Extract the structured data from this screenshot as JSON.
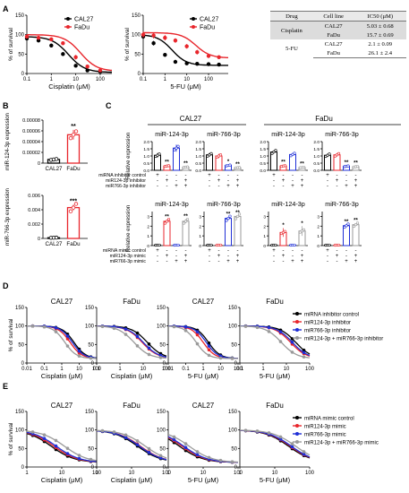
{
  "panels": {
    "A": "A",
    "B": "B",
    "C": "C",
    "D": "D",
    "E": "E"
  },
  "table": {
    "headers": [
      "Drug",
      "Cell line",
      "IC50 (μM)"
    ],
    "rows": [
      {
        "drug": "Cisplatin",
        "cell": "CAL27",
        "ic50": "5.03 ± 0.68"
      },
      {
        "drug": "",
        "cell": "FaDu",
        "ic50": "15.7 ± 0.69"
      },
      {
        "drug": "5-FU",
        "cell": "CAL27",
        "ic50": "2.1 ± 0.09"
      },
      {
        "drug": "",
        "cell": "FaDu",
        "ic50": "26.1 ± 2.4"
      }
    ]
  },
  "colors": {
    "cal27": "#000000",
    "fadu": "#e8262c",
    "blue": "#1f2fd6",
    "gray": "#9a9a9a",
    "red": "#e8262c"
  },
  "chart_data": [
    {
      "id": "A1",
      "type": "line",
      "title": "",
      "xlabel": "Cisplatin (μM)",
      "ylabel": "% of survival",
      "xscale": "log",
      "xlim": [
        0.1,
        300
      ],
      "ylim": [
        0,
        150
      ],
      "xticks": [
        "0.1",
        "1",
        "10",
        "100"
      ],
      "yticks": [
        "0",
        "50",
        "100",
        "150"
      ],
      "legend": [
        "CAL27",
        "FaDu"
      ],
      "series": [
        {
          "name": "CAL27",
          "color": "#000000",
          "x": [
            0.1,
            0.3,
            1,
            3,
            10,
            30,
            100
          ],
          "y": [
            90,
            85,
            72,
            50,
            20,
            8,
            5
          ],
          "err": [
            4,
            4,
            5,
            5,
            4,
            3,
            2
          ],
          "ec50": 5.03
        },
        {
          "name": "FaDu",
          "color": "#e8262c",
          "x": [
            0.1,
            0.3,
            1,
            3,
            10,
            30,
            100
          ],
          "y": [
            95,
            92,
            88,
            78,
            42,
            18,
            8
          ],
          "err": [
            4,
            4,
            5,
            5,
            6,
            4,
            3
          ],
          "ec50": 15.7
        }
      ]
    },
    {
      "id": "A2",
      "type": "line",
      "title": "",
      "xlabel": "5-FU (μM)",
      "ylabel": "% of survival",
      "xscale": "log",
      "xlim": [
        0.1,
        800
      ],
      "ylim": [
        0,
        150
      ],
      "xticks": [
        "0.1",
        "1",
        "10",
        "100"
      ],
      "yticks": [
        "0",
        "50",
        "100",
        "150"
      ],
      "legend": [
        "CAL27",
        "FaDu"
      ],
      "series": [
        {
          "name": "CAL27",
          "color": "#000000",
          "x": [
            0.1,
            0.3,
            1,
            3,
            10,
            30,
            100,
            300
          ],
          "y": [
            95,
            78,
            48,
            30,
            26,
            25,
            24,
            23
          ],
          "err": [
            6,
            6,
            5,
            4,
            4,
            4,
            4,
            4
          ],
          "ec50": 2.1
        },
        {
          "name": "FaDu",
          "color": "#e8262c",
          "x": [
            0.1,
            0.3,
            1,
            3,
            10,
            30,
            100,
            300
          ],
          "y": [
            100,
            98,
            92,
            85,
            70,
            55,
            45,
            42
          ],
          "err": [
            8,
            8,
            7,
            6,
            6,
            6,
            5,
            5
          ],
          "ec50": 26.1
        }
      ]
    },
    {
      "id": "B1",
      "type": "bar",
      "ylabel": "miR-124-3p expression",
      "categories": [
        "CAL27",
        "FaDu"
      ],
      "values": [
        6.8e-06,
        5.28e-05
      ],
      "err": [
        1e-06,
        9e-06
      ],
      "ylim": [
        0,
        8e-05
      ],
      "yticks": [
        "0",
        "0.00002",
        "0.00004",
        "0.00006",
        "0.00008"
      ],
      "sig": [
        "",
        "**"
      ],
      "colors": [
        "#000000",
        "#e8262c"
      ]
    },
    {
      "id": "B2",
      "type": "bar",
      "ylabel": "miR-766-3p expression",
      "categories": [
        "CAL27",
        "FaDu"
      ],
      "values": [
        0.0001,
        0.0043
      ],
      "err": [
        5e-05,
        0.0004
      ],
      "ylim": [
        0,
        0.006
      ],
      "yticks": [
        "0",
        "0.002",
        "0.004",
        "0.006"
      ],
      "sig": [
        "",
        "***"
      ],
      "colors": [
        "#000000",
        "#e8262c"
      ]
    },
    {
      "id": "C",
      "type": "bar",
      "groups_top": [
        "CAL27",
        "FaDu"
      ],
      "rows": [
        {
          "ylabel": "Relative expression",
          "yticks": [
            "0.0",
            "0.5",
            "1.0",
            "1.5",
            "2.0"
          ],
          "ylim": [
            0,
            2
          ],
          "label_rows": [
            "miRNA inhibitor control",
            "miR124-3p inhibitor",
            "miR766-3p inhibitor"
          ],
          "pattern": [
            [
              "+",
              "-",
              "-",
              "-"
            ],
            [
              "-",
              "+",
              "-",
              "+"
            ],
            [
              "-",
              "-",
              "+",
              "+"
            ]
          ],
          "subpanels": [
            {
              "title": "miR-124-3p",
              "values": [
                1.05,
                0.3,
                1.55,
                0.22
              ],
              "err": [
                0.15,
                0.08,
                0.25,
                0.06
              ],
              "sig": [
                "",
                "**",
                "",
                "**"
              ]
            },
            {
              "title": "miR-766-3p",
              "values": [
                1.08,
                1.0,
                0.34,
                0.18
              ],
              "err": [
                0.12,
                0.15,
                0.06,
                0.05
              ],
              "sig": [
                "",
                "",
                "*",
                "**"
              ]
            },
            {
              "title": "miR-124-3p",
              "values": [
                1.28,
                0.3,
                1.1,
                0.2
              ],
              "err": [
                0.08,
                0.06,
                0.1,
                0.05
              ],
              "sig": [
                "",
                "**",
                "",
                "**"
              ]
            },
            {
              "title": "miR-766-3p",
              "values": [
                1.05,
                1.08,
                0.28,
                0.25
              ],
              "err": [
                0.1,
                0.12,
                0.06,
                0.05
              ],
              "sig": [
                "",
                "",
                "**",
                "**"
              ]
            }
          ]
        },
        {
          "ylabel": "Relative expression",
          "yticks": [
            "0",
            "1",
            "2",
            "3"
          ],
          "ylim": [
            0,
            3.5
          ],
          "label_rows": [
            "miRNA mimic control",
            "miR124-3p mimic",
            "miR766-3p mimic"
          ],
          "pattern": [
            [
              "+",
              "-",
              "-",
              "-"
            ],
            [
              "-",
              "+",
              "-",
              "+"
            ],
            [
              "-",
              "-",
              "+",
              "+"
            ]
          ],
          "subpanels": [
            {
              "title": "miR-124-3p",
              "values": [
                0.05,
                2.5,
                0.05,
                2.5
              ],
              "err": [
                0.02,
                0.15,
                0.02,
                0.2
              ],
              "sig": [
                "",
                "**",
                "",
                "**"
              ]
            },
            {
              "title": "miR-766-3p",
              "values": [
                0.05,
                0.05,
                2.8,
                3.0
              ],
              "err": [
                0.02,
                0.02,
                0.15,
                0.1
              ],
              "sig": [
                "",
                "",
                "**",
                "**"
              ]
            },
            {
              "title": "miR-124-3p",
              "values": [
                0.05,
                1.35,
                0.05,
                1.5
              ],
              "err": [
                0.02,
                0.45,
                0.02,
                0.5
              ],
              "sig": [
                "",
                "*",
                "",
                "*"
              ]
            },
            {
              "title": "miR-766-3p",
              "values": [
                0.05,
                0.05,
                2.05,
                2.15
              ],
              "err": [
                0.02,
                0.02,
                0.12,
                0.15
              ],
              "sig": [
                "",
                "",
                "**",
                "**"
              ]
            }
          ]
        }
      ]
    },
    {
      "id": "D",
      "type": "line",
      "ylabel": "% of survival",
      "legend": [
        "miRNA inhibitor control",
        "miR124-3p inhibitor",
        "miR766-3p inhibitor",
        "miR124-3p + miR766-3p inhibitor"
      ],
      "legend_colors": [
        "#000000",
        "#e8262c",
        "#1f2fd6",
        "#9a9a9a"
      ],
      "subplots": [
        {
          "title": "CAL27",
          "xlabel": "Cisplatin (μM)",
          "xticks": [
            "0.01",
            "0.1",
            "1",
            "10",
            "100"
          ],
          "xlim": [
            0.01,
            100
          ],
          "ylim": [
            0,
            150
          ],
          "yticks": [
            "0",
            "50",
            "100",
            "150"
          ],
          "ec50": [
            5,
            3,
            4,
            1.5
          ]
        },
        {
          "title": "FaDu",
          "xlabel": "Cisplatin (μM)",
          "xticks": [
            "0.1",
            "1",
            "10",
            "100"
          ],
          "xlim": [
            0.1,
            100
          ],
          "ylim": [
            0,
            150
          ],
          "yticks": [
            "0",
            "50",
            "100",
            "150"
          ],
          "ec50": [
            15,
            9,
            10,
            4
          ]
        },
        {
          "title": "CAL27",
          "xlabel": "5-FU (μM)",
          "xticks": [
            "0.01",
            "0.1",
            "1",
            "10",
            "100"
          ],
          "xlim": [
            0.01,
            100
          ],
          "ylim": [
            0,
            150
          ],
          "yticks": [
            "0",
            "50",
            "100",
            "150"
          ],
          "ec50": [
            2,
            1,
            1.5,
            0.4
          ]
        },
        {
          "title": "FaDu",
          "xlabel": "5-FU (μM)",
          "xticks": [
            "0.1",
            "1",
            "10",
            "100"
          ],
          "xlim": [
            0.1,
            100
          ],
          "ylim": [
            0,
            150
          ],
          "yticks": [
            "0",
            "50",
            "100",
            "150"
          ],
          "ec50": [
            25,
            15,
            18,
            6
          ]
        }
      ]
    },
    {
      "id": "E",
      "type": "line",
      "ylabel": "% of survival",
      "legend": [
        "miRNA mimic control",
        "miR124-3p mimic",
        "miR766-3p mimic",
        "miR124-3p + miR766-3p mimic"
      ],
      "legend_colors": [
        "#000000",
        "#e8262c",
        "#1f2fd6",
        "#9a9a9a"
      ],
      "subplots": [
        {
          "title": "CAL27",
          "xlabel": "Cisplatin (μM)",
          "xticks": [
            "1",
            "10",
            "100"
          ],
          "xlim": [
            1,
            100
          ],
          "ylim": [
            0,
            150
          ],
          "yticks": [
            "0",
            "50",
            "100",
            "150"
          ],
          "ec50": [
            5,
            6,
            7,
            12
          ]
        },
        {
          "title": "FaDu",
          "xlabel": "Cisplatin (μM)",
          "xticks": [
            "1",
            "10",
            "100"
          ],
          "xlim": [
            1,
            100
          ],
          "ylim": [
            0,
            150
          ],
          "yticks": [
            "0",
            "50",
            "100",
            "150"
          ],
          "ec50": [
            15,
            18,
            17,
            25
          ]
        },
        {
          "title": "CAL27",
          "xlabel": "5-FU (μM)",
          "xticks": [
            "1",
            "10",
            "100"
          ],
          "xlim": [
            1,
            100
          ],
          "ylim": [
            0,
            150
          ],
          "yticks": [
            "0",
            "50",
            "100",
            "150"
          ],
          "ec50": [
            2.1,
            2.5,
            2.8,
            4
          ]
        },
        {
          "title": "FaDu",
          "xlabel": "5-FU (μM)",
          "xticks": [
            "1",
            "10",
            "100"
          ],
          "xlim": [
            1,
            100
          ],
          "ylim": [
            0,
            150
          ],
          "yticks": [
            "0",
            "50",
            "100",
            "150"
          ],
          "ec50": [
            25,
            28,
            30,
            40
          ]
        }
      ]
    }
  ]
}
